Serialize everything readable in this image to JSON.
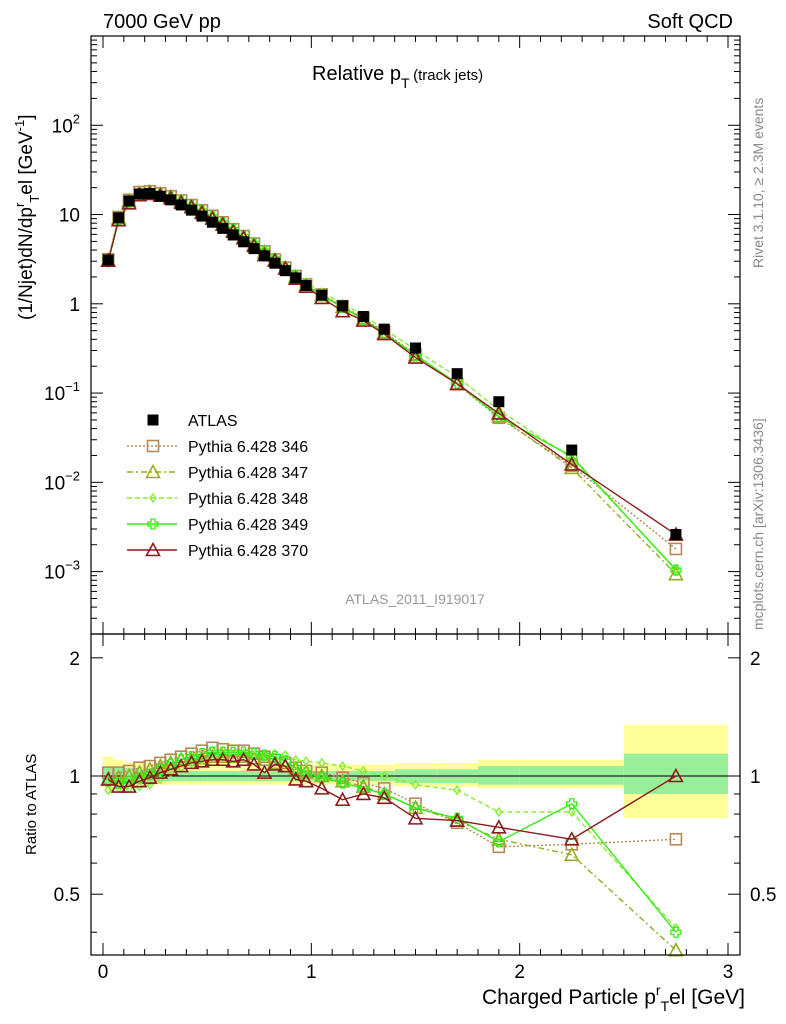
{
  "header": {
    "left": "7000 GeV pp",
    "right": "Soft QCD",
    "title_main": "Relative p",
    "title_sub": "T",
    "title_paren": "(track jets)",
    "analysis_id": "ATLAS_2011_I919017",
    "side_rivet": "Rivet 3.1.10, ≥ 2.3M events",
    "side_site": "mcplots.cern.ch [arXiv:1306.3436]"
  },
  "axes": {
    "ylabel_main": "(1/Njet)dN/dp",
    "ylabel_main_sup": "r",
    "ylabel_main_sub": "T",
    "ylabel_main_tail": "el [GeV",
    "ylabel_main_unit_sup": "-1",
    "ylabel_main_end": "]",
    "ylabel_ratio": "Ratio to ATLAS",
    "xlabel": "Charged Particle p",
    "xlabel_sup": "r",
    "xlabel_sub": "T",
    "xlabel_tail": "el [GeV]",
    "main_ticks": [
      {
        "v": 100,
        "base": "10",
        "exp": "2"
      },
      {
        "v": 10,
        "base": "10",
        "exp": ""
      },
      {
        "v": 1,
        "base": "1",
        "exp": ""
      },
      {
        "v": 0.1,
        "base": "10",
        "exp": "−1"
      },
      {
        "v": 0.01,
        "base": "10",
        "exp": "−2"
      },
      {
        "v": 0.001,
        "base": "10",
        "exp": "−3"
      }
    ],
    "ratio_ticks": [
      "2",
      "1",
      "0.5"
    ],
    "x_ticks": [
      "0",
      "1",
      "2",
      "3"
    ]
  },
  "legend": [
    {
      "label": "ATLAS",
      "color": "#000000",
      "marker": "square-filled"
    },
    {
      "label": "Pythia 6.428 346",
      "color": "#b38a55",
      "marker": "square-open"
    },
    {
      "label": "Pythia 6.428 347",
      "color": "#99aa22",
      "marker": "triangle-open"
    },
    {
      "label": "Pythia 6.428 348",
      "color": "#88ee33",
      "marker": "diamond-open"
    },
    {
      "label": "Pythia 6.428 349",
      "color": "#33ee11",
      "marker": "cross-open"
    },
    {
      "label": "Pythia 6.428 370",
      "color": "#8b1a1a",
      "marker": "triangle-open"
    }
  ],
  "chart_data": {
    "type": "line",
    "xlim": [
      0,
      3
    ],
    "ylim_main": [
      0.0002,
      1000
    ],
    "ylog_main": true,
    "ylim_ratio": [
      0.35,
      2.3
    ],
    "ylog_ratio": true,
    "x": [
      0.025,
      0.075,
      0.125,
      0.175,
      0.225,
      0.275,
      0.325,
      0.375,
      0.425,
      0.475,
      0.525,
      0.575,
      0.625,
      0.675,
      0.725,
      0.775,
      0.825,
      0.875,
      0.925,
      0.975,
      1.05,
      1.15,
      1.25,
      1.35,
      1.5,
      1.7,
      1.9,
      2.25,
      2.75
    ],
    "data_values": [
      3.1,
      9.2,
      14.2,
      17.0,
      17.2,
      16.0,
      14.6,
      12.8,
      11.2,
      9.6,
      8.2,
      7.0,
      5.9,
      4.95,
      4.15,
      3.45,
      2.85,
      2.35,
      1.95,
      1.6,
      1.25,
      0.95,
      0.72,
      0.52,
      0.32,
      0.165,
      0.08,
      0.023,
      0.0026
    ],
    "data_band_inner": [
      [
        0.95,
        1.05
      ],
      [
        0.95,
        1.05
      ],
      [
        0.95,
        1.05
      ],
      [
        0.96,
        1.04
      ],
      [
        0.96,
        1.04
      ],
      [
        0.97,
        1.03
      ],
      [
        0.97,
        1.03
      ],
      [
        0.97,
        1.03
      ],
      [
        0.97,
        1.03
      ],
      [
        0.97,
        1.03
      ],
      [
        0.97,
        1.03
      ],
      [
        0.97,
        1.03
      ],
      [
        0.97,
        1.03
      ],
      [
        0.97,
        1.03
      ],
      [
        0.97,
        1.03
      ],
      [
        0.97,
        1.03
      ],
      [
        0.97,
        1.03
      ],
      [
        0.97,
        1.03
      ],
      [
        0.97,
        1.03
      ],
      [
        0.97,
        1.03
      ],
      [
        0.97,
        1.03
      ],
      [
        0.97,
        1.03
      ],
      [
        0.97,
        1.03
      ],
      [
        0.97,
        1.03
      ],
      [
        0.96,
        1.04
      ],
      [
        0.96,
        1.04
      ],
      [
        0.95,
        1.06
      ],
      [
        0.95,
        1.06
      ],
      [
        0.9,
        1.14
      ]
    ],
    "data_band_outer": [
      [
        0.93,
        1.12
      ],
      [
        0.94,
        1.1
      ],
      [
        0.95,
        1.08
      ],
      [
        0.95,
        1.08
      ],
      [
        0.95,
        1.08
      ],
      [
        0.95,
        1.08
      ],
      [
        0.95,
        1.08
      ],
      [
        0.95,
        1.08
      ],
      [
        0.95,
        1.07
      ],
      [
        0.95,
        1.07
      ],
      [
        0.95,
        1.07
      ],
      [
        0.95,
        1.07
      ],
      [
        0.95,
        1.07
      ],
      [
        0.95,
        1.07
      ],
      [
        0.95,
        1.07
      ],
      [
        0.95,
        1.07
      ],
      [
        0.95,
        1.07
      ],
      [
        0.95,
        1.07
      ],
      [
        0.95,
        1.07
      ],
      [
        0.95,
        1.07
      ],
      [
        0.95,
        1.07
      ],
      [
        0.95,
        1.07
      ],
      [
        0.95,
        1.07
      ],
      [
        0.95,
        1.07
      ],
      [
        0.94,
        1.08
      ],
      [
        0.94,
        1.08
      ],
      [
        0.93,
        1.1
      ],
      [
        0.93,
        1.1
      ],
      [
        0.78,
        1.35
      ]
    ],
    "bin_edges": [
      0.0,
      0.05,
      0.1,
      0.15,
      0.2,
      0.25,
      0.3,
      0.35,
      0.4,
      0.45,
      0.5,
      0.55,
      0.6,
      0.65,
      0.7,
      0.75,
      0.8,
      0.85,
      0.9,
      0.95,
      1.0,
      1.1,
      1.2,
      1.3,
      1.4,
      1.6,
      1.8,
      2.0,
      2.5,
      3.0
    ],
    "series": [
      {
        "name": "Pythia 6.428 346",
        "ratio": [
          1.02,
          1.02,
          1.03,
          1.05,
          1.06,
          1.08,
          1.1,
          1.12,
          1.14,
          1.16,
          1.18,
          1.17,
          1.16,
          1.16,
          1.14,
          1.12,
          1.1,
          1.08,
          1.05,
          1.03,
          1.02,
          0.99,
          0.96,
          0.93,
          0.85,
          0.76,
          0.66,
          0.67,
          0.69
        ]
      },
      {
        "name": "Pythia 6.428 347",
        "ratio": [
          0.98,
          0.99,
          1.0,
          1.02,
          1.04,
          1.06,
          1.08,
          1.1,
          1.1,
          1.11,
          1.12,
          1.12,
          1.12,
          1.12,
          1.11,
          1.1,
          1.08,
          1.06,
          1.04,
          1.02,
          1.0,
          0.97,
          0.94,
          0.9,
          0.83,
          0.77,
          0.69,
          0.63,
          0.36
        ]
      },
      {
        "name": "Pythia 6.428 348",
        "ratio": [
          0.92,
          0.93,
          0.93,
          0.94,
          0.95,
          0.98,
          1.02,
          1.05,
          1.08,
          1.1,
          1.12,
          1.12,
          1.13,
          1.14,
          1.13,
          1.13,
          1.14,
          1.13,
          1.1,
          1.09,
          1.08,
          1.06,
          1.03,
          1.0,
          0.95,
          0.92,
          0.81,
          0.81,
          0.41
        ]
      },
      {
        "name": "Pythia 6.428 349",
        "ratio": [
          0.97,
          0.96,
          0.97,
          0.99,
          1.01,
          1.04,
          1.07,
          1.1,
          1.12,
          1.14,
          1.15,
          1.15,
          1.15,
          1.15,
          1.14,
          1.13,
          1.12,
          1.09,
          1.05,
          1.02,
          0.99,
          0.96,
          0.93,
          0.9,
          0.83,
          0.78,
          0.68,
          0.85,
          0.4
        ]
      },
      {
        "name": "Pythia 6.428 370",
        "ratio": [
          0.98,
          0.94,
          0.94,
          0.97,
          0.99,
          1.02,
          1.04,
          1.06,
          1.08,
          1.09,
          1.1,
          1.1,
          1.09,
          1.1,
          1.07,
          1.02,
          1.07,
          1.06,
          0.98,
          0.97,
          0.93,
          0.87,
          0.9,
          0.88,
          0.78,
          0.77,
          0.74,
          0.69,
          1.0
        ]
      }
    ]
  }
}
